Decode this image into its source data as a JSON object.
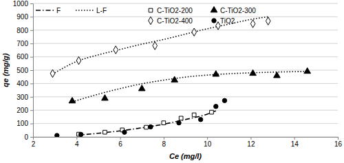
{
  "chart_data": {
    "type": "scatter",
    "x_label": "Ce (mg/l)",
    "y_label": "qe (mg/g)",
    "xlim": [
      2,
      16
    ],
    "xticks": [
      2,
      4,
      6,
      8,
      10,
      12,
      14,
      16
    ],
    "ylim": [
      0,
      1000
    ],
    "yticks": [
      0,
      100,
      200,
      300,
      400,
      500,
      600,
      700,
      800,
      900,
      1000
    ],
    "grid": true,
    "legend": "top-left",
    "series": [
      {
        "name": "F",
        "type": "line",
        "line_style": "dashdot",
        "color": "#000000",
        "x": [
          4,
          5,
          6,
          7,
          8,
          9,
          10,
          10.4
        ],
        "values": [
          12,
          27,
          45,
          68,
          95,
          130,
          170,
          195
        ]
      },
      {
        "name": "L-F",
        "type": "line",
        "line_style": "dotted",
        "color": "#000000",
        "x": [
          3,
          4,
          5,
          6,
          7,
          8,
          9,
          10,
          11,
          12,
          12.8
        ],
        "values": [
          480,
          565,
          615,
          655,
          695,
          730,
          770,
          810,
          845,
          880,
          900
        ]
      },
      {
        "name": "L-F",
        "type": "line",
        "line_style": "dotted",
        "color": "#000000",
        "x": [
          3.8,
          5,
          6,
          7,
          8,
          9,
          10,
          11,
          12,
          13,
          14.6
        ],
        "values": [
          262,
          320,
          362,
          398,
          425,
          448,
          463,
          473,
          480,
          485,
          490
        ]
      },
      {
        "name": "C-TiO2-200",
        "type": "scatter",
        "marker": "square-open",
        "color": "#000000",
        "x": [
          4.1,
          5.3,
          6.1,
          7.2,
          8.0,
          8.8,
          9.4,
          10.2
        ],
        "values": [
          20,
          35,
          52,
          72,
          105,
          140,
          165,
          185
        ]
      },
      {
        "name": "C-TiO2-300",
        "type": "scatter",
        "marker": "triangle",
        "color": "#000000",
        "x": [
          3.8,
          5.3,
          7.0,
          8.5,
          10.4,
          12.1,
          13.2,
          14.6
        ],
        "values": [
          268,
          288,
          360,
          425,
          468,
          475,
          458,
          490
        ]
      },
      {
        "name": "C-TiO2-400",
        "type": "scatter",
        "marker": "diamond-open",
        "color": "#000000",
        "x": [
          2.9,
          4.1,
          5.8,
          7.6,
          9.4,
          10.5,
          12.1,
          12.8
        ],
        "values": [
          475,
          572,
          652,
          683,
          785,
          833,
          848,
          868
        ]
      },
      {
        "name": "TiO2",
        "type": "scatter",
        "marker": "circle",
        "color": "#000000",
        "x": [
          3.1,
          4.2,
          6.2,
          7.4,
          8.7,
          9.7,
          10.4,
          10.8
        ],
        "values": [
          10,
          18,
          35,
          75,
          105,
          130,
          228,
          272
        ]
      }
    ]
  }
}
